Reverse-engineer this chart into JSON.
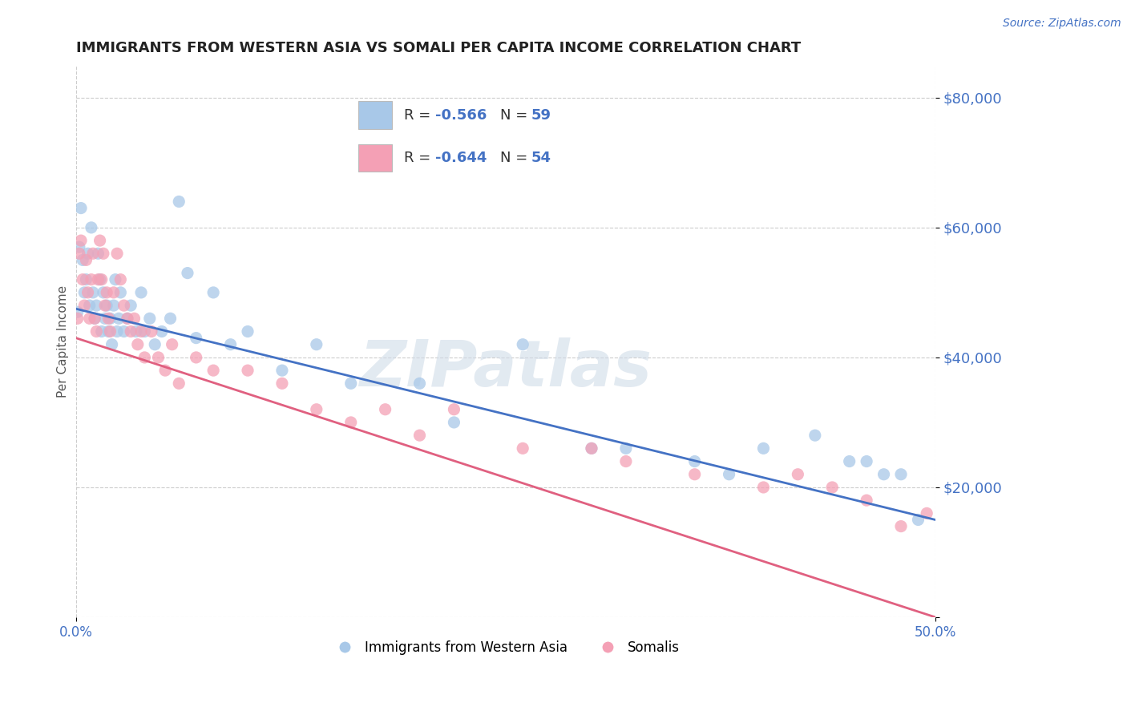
{
  "title": "IMMIGRANTS FROM WESTERN ASIA VS SOMALI PER CAPITA INCOME CORRELATION CHART",
  "source": "Source: ZipAtlas.com",
  "ylabel": "Per Capita Income",
  "yticks": [
    0,
    20000,
    40000,
    60000,
    80000
  ],
  "ytick_labels": [
    "",
    "$20,000",
    "$40,000",
    "$60,000",
    "$80,000"
  ],
  "xlim": [
    0.0,
    0.5
  ],
  "ylim": [
    0,
    85000
  ],
  "watermark": "ZIPatlas",
  "color_blue": "#a8c8e8",
  "color_pink": "#f4a0b5",
  "color_line_blue": "#4472c4",
  "color_line_pink": "#e06080",
  "color_axis": "#4472c4",
  "color_grid": "#cccccc",
  "blue_x": [
    0.001,
    0.002,
    0.003,
    0.004,
    0.005,
    0.006,
    0.007,
    0.008,
    0.009,
    0.01,
    0.011,
    0.012,
    0.013,
    0.014,
    0.015,
    0.016,
    0.017,
    0.018,
    0.019,
    0.02,
    0.021,
    0.022,
    0.023,
    0.024,
    0.025,
    0.026,
    0.028,
    0.03,
    0.032,
    0.035,
    0.038,
    0.04,
    0.043,
    0.046,
    0.05,
    0.055,
    0.06,
    0.065,
    0.07,
    0.08,
    0.09,
    0.1,
    0.12,
    0.14,
    0.16,
    0.2,
    0.22,
    0.26,
    0.3,
    0.32,
    0.36,
    0.38,
    0.4,
    0.43,
    0.45,
    0.46,
    0.47,
    0.48,
    0.49
  ],
  "blue_y": [
    47000,
    57000,
    63000,
    55000,
    50000,
    52000,
    56000,
    48000,
    60000,
    50000,
    46000,
    48000,
    56000,
    52000,
    44000,
    50000,
    46000,
    48000,
    44000,
    46000,
    42000,
    48000,
    52000,
    44000,
    46000,
    50000,
    44000,
    46000,
    48000,
    44000,
    50000,
    44000,
    46000,
    42000,
    44000,
    46000,
    64000,
    53000,
    43000,
    50000,
    42000,
    44000,
    38000,
    42000,
    36000,
    36000,
    30000,
    42000,
    26000,
    26000,
    24000,
    22000,
    26000,
    28000,
    24000,
    24000,
    22000,
    22000,
    15000
  ],
  "pink_x": [
    0.001,
    0.002,
    0.003,
    0.004,
    0.005,
    0.006,
    0.007,
    0.008,
    0.009,
    0.01,
    0.011,
    0.012,
    0.013,
    0.014,
    0.015,
    0.016,
    0.017,
    0.018,
    0.019,
    0.02,
    0.022,
    0.024,
    0.026,
    0.028,
    0.03,
    0.032,
    0.034,
    0.036,
    0.038,
    0.04,
    0.044,
    0.048,
    0.052,
    0.056,
    0.06,
    0.07,
    0.08,
    0.1,
    0.12,
    0.14,
    0.16,
    0.18,
    0.2,
    0.22,
    0.26,
    0.3,
    0.32,
    0.36,
    0.4,
    0.42,
    0.44,
    0.46,
    0.48,
    0.495
  ],
  "pink_y": [
    46000,
    56000,
    58000,
    52000,
    48000,
    55000,
    50000,
    46000,
    52000,
    56000,
    46000,
    44000,
    52000,
    58000,
    52000,
    56000,
    48000,
    50000,
    46000,
    44000,
    50000,
    56000,
    52000,
    48000,
    46000,
    44000,
    46000,
    42000,
    44000,
    40000,
    44000,
    40000,
    38000,
    42000,
    36000,
    40000,
    38000,
    38000,
    36000,
    32000,
    30000,
    32000,
    28000,
    32000,
    26000,
    26000,
    24000,
    22000,
    20000,
    22000,
    20000,
    18000,
    14000,
    16000
  ]
}
